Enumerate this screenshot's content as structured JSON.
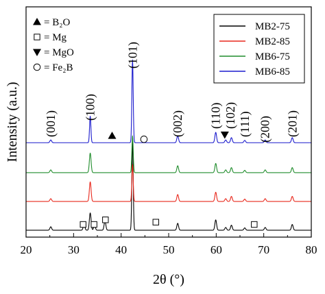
{
  "chart_data": {
    "type": "line",
    "title": "",
    "xlabel": "2θ (°)",
    "ylabel": "Intensity (a.u.)",
    "xlim": [
      20,
      80
    ],
    "x_ticks": [
      20,
      30,
      40,
      50,
      60,
      70,
      80
    ],
    "x_tick_labels": [
      "20",
      "30",
      "40",
      "50",
      "60",
      "70",
      "80"
    ],
    "y_ticks_shown": false,
    "grid": false,
    "legend_position": "top-right",
    "series": [
      {
        "name": "MB2-75",
        "color": "#000000",
        "baseline": 0.03,
        "peaks": [
          {
            "x": 25.2,
            "h": 0.015
          },
          {
            "x": 32.2,
            "h": 0.025
          },
          {
            "x": 33.5,
            "h": 0.075
          },
          {
            "x": 34.4,
            "h": 0.02
          },
          {
            "x": 36.6,
            "h": 0.04
          },
          {
            "x": 42.4,
            "h": 0.4
          },
          {
            "x": 51.9,
            "h": 0.03
          },
          {
            "x": 59.9,
            "h": 0.045
          },
          {
            "x": 62.0,
            "h": 0.012
          },
          {
            "x": 63.2,
            "h": 0.022
          },
          {
            "x": 66.0,
            "h": 0.01
          },
          {
            "x": 70.3,
            "h": 0.012
          },
          {
            "x": 76.0,
            "h": 0.025
          }
        ]
      },
      {
        "name": "MB2-85",
        "color": "#e8271b",
        "baseline": 0.155,
        "peaks": [
          {
            "x": 25.2,
            "h": 0.012
          },
          {
            "x": 33.5,
            "h": 0.085
          },
          {
            "x": 42.4,
            "h": 0.16
          },
          {
            "x": 51.9,
            "h": 0.03
          },
          {
            "x": 59.9,
            "h": 0.04
          },
          {
            "x": 62.0,
            "h": 0.012
          },
          {
            "x": 63.2,
            "h": 0.022
          },
          {
            "x": 66.0,
            "h": 0.01
          },
          {
            "x": 70.3,
            "h": 0.012
          },
          {
            "x": 76.0,
            "h": 0.022
          }
        ]
      },
      {
        "name": "MB6-75",
        "color": "#1f8c2b",
        "baseline": 0.28,
        "peaks": [
          {
            "x": 25.2,
            "h": 0.012
          },
          {
            "x": 33.5,
            "h": 0.085
          },
          {
            "x": 42.4,
            "h": 0.16
          },
          {
            "x": 51.9,
            "h": 0.03
          },
          {
            "x": 59.9,
            "h": 0.04
          },
          {
            "x": 62.0,
            "h": 0.012
          },
          {
            "x": 63.2,
            "h": 0.022
          },
          {
            "x": 66.0,
            "h": 0.01
          },
          {
            "x": 70.3,
            "h": 0.012
          },
          {
            "x": 76.0,
            "h": 0.022
          }
        ]
      },
      {
        "name": "MB6-85",
        "color": "#1a1acd",
        "baseline": 0.41,
        "peaks": [
          {
            "x": 25.2,
            "h": 0.012
          },
          {
            "x": 33.5,
            "h": 0.115
          },
          {
            "x": 42.4,
            "h": 0.36
          },
          {
            "x": 51.9,
            "h": 0.03
          },
          {
            "x": 59.9,
            "h": 0.045
          },
          {
            "x": 62.0,
            "h": 0.012
          },
          {
            "x": 63.2,
            "h": 0.022
          },
          {
            "x": 66.0,
            "h": 0.01
          },
          {
            "x": 70.3,
            "h": 0.012
          },
          {
            "x": 76.0,
            "h": 0.022
          }
        ]
      }
    ],
    "peak_labels": [
      {
        "text": "(001)",
        "x": 25.2
      },
      {
        "text": "(100)",
        "x": 33.5
      },
      {
        "text": "(101)",
        "x": 42.4
      },
      {
        "text": "(002)",
        "x": 51.9
      },
      {
        "text": "(110)",
        "x": 59.9
      },
      {
        "text": "(102)",
        "x": 63.0
      },
      {
        "text": "(111)",
        "x": 66.0
      },
      {
        "text": "(200)",
        "x": 70.3
      },
      {
        "text": "(201)",
        "x": 76.0
      }
    ],
    "phase_key": [
      {
        "symbol": "triangle-up",
        "label": "= B₂O"
      },
      {
        "symbol": "square-open",
        "label": "= Mg"
      },
      {
        "symbol": "triangle-down",
        "label": "= MgO"
      },
      {
        "symbol": "circle-open",
        "label": "= Fe₂B"
      }
    ],
    "phase_markers": [
      {
        "symbol": "triangle-up",
        "x": 38.1,
        "y": 0.44
      },
      {
        "symbol": "circle-open",
        "x": 44.8,
        "y": 0.425
      },
      {
        "symbol": "triangle-down",
        "x": 61.8,
        "y": 0.445
      },
      {
        "symbol": "square-open",
        "x": 32.0,
        "y": 0.055
      },
      {
        "symbol": "square-open",
        "x": 34.3,
        "y": 0.055
      },
      {
        "symbol": "square-open",
        "x": 36.7,
        "y": 0.075
      },
      {
        "symbol": "square-open",
        "x": 47.3,
        "y": 0.065
      },
      {
        "symbol": "square-open",
        "x": 68.0,
        "y": 0.055
      }
    ]
  }
}
